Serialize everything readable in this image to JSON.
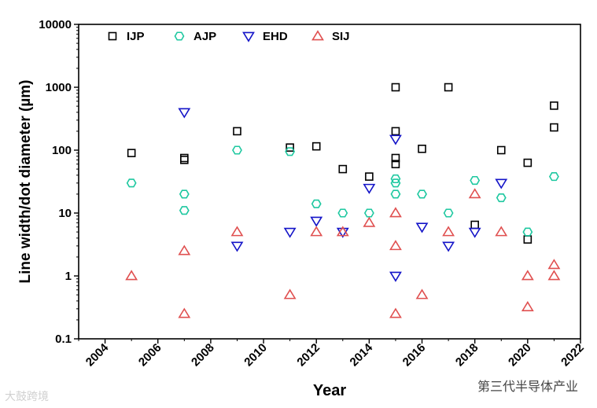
{
  "chart_data": {
    "type": "scatter",
    "title": "",
    "xlabel": "Year",
    "ylabel": "Line width/dot diameter (µm)",
    "xlim": [
      2003,
      2022
    ],
    "ylim": [
      0.1,
      10000
    ],
    "yscale": "log",
    "xticks": [
      "2004",
      "2006",
      "2008",
      "2010",
      "2012",
      "2014",
      "2016",
      "2018",
      "2020",
      "2022"
    ],
    "yticks": [
      "0.1",
      "1",
      "10",
      "100",
      "1000",
      "10000"
    ],
    "grid": false,
    "legend_position": "top",
    "series": [
      {
        "name": "IJP",
        "marker": "square",
        "color": "#000000",
        "points": [
          [
            2005,
            90
          ],
          [
            2007,
            75
          ],
          [
            2007,
            70
          ],
          [
            2009,
            200
          ],
          [
            2011,
            110
          ],
          [
            2012,
            115
          ],
          [
            2013,
            50
          ],
          [
            2014,
            38
          ],
          [
            2015,
            1000
          ],
          [
            2015,
            200
          ],
          [
            2015,
            75
          ],
          [
            2015,
            60
          ],
          [
            2016,
            105
          ],
          [
            2017,
            1000
          ],
          [
            2018,
            6.5
          ],
          [
            2019,
            100
          ],
          [
            2020,
            63
          ],
          [
            2020,
            3.8
          ],
          [
            2021,
            510
          ],
          [
            2021,
            230
          ]
        ]
      },
      {
        "name": "AJP",
        "marker": "hexagon",
        "color": "#1ec8a0",
        "points": [
          [
            2005,
            30
          ],
          [
            2007,
            20
          ],
          [
            2007,
            11
          ],
          [
            2009,
            100
          ],
          [
            2011,
            95
          ],
          [
            2012,
            14
          ],
          [
            2013,
            10
          ],
          [
            2014,
            10
          ],
          [
            2015,
            35
          ],
          [
            2015,
            30
          ],
          [
            2015,
            20
          ],
          [
            2016,
            20
          ],
          [
            2017,
            10
          ],
          [
            2018,
            33
          ],
          [
            2019,
            17.5
          ],
          [
            2020,
            5
          ],
          [
            2021,
            38
          ]
        ]
      },
      {
        "name": "EHD",
        "marker": "triangle-down",
        "color": "#1414c8",
        "points": [
          [
            2007,
            400
          ],
          [
            2009,
            3
          ],
          [
            2011,
            5
          ],
          [
            2012,
            7.5
          ],
          [
            2013,
            5
          ],
          [
            2014,
            25
          ],
          [
            2015,
            150
          ],
          [
            2015,
            1
          ],
          [
            2016,
            6
          ],
          [
            2017,
            3
          ],
          [
            2018,
            5
          ],
          [
            2019,
            30
          ]
        ]
      },
      {
        "name": "SIJ",
        "marker": "triangle-up",
        "color": "#e05050",
        "points": [
          [
            2005,
            1
          ],
          [
            2007,
            2.5
          ],
          [
            2007,
            0.25
          ],
          [
            2009,
            5
          ],
          [
            2011,
            0.5
          ],
          [
            2012,
            5
          ],
          [
            2013,
            5
          ],
          [
            2014,
            7
          ],
          [
            2015,
            10
          ],
          [
            2015,
            3
          ],
          [
            2015,
            0.25
          ],
          [
            2016,
            0.5
          ],
          [
            2017,
            5
          ],
          [
            2018,
            20
          ],
          [
            2019,
            5
          ],
          [
            2020,
            1
          ],
          [
            2020,
            0.32
          ],
          [
            2021,
            1.5
          ],
          [
            2021,
            1
          ]
        ]
      }
    ]
  },
  "watermarks": {
    "left": "大鼓跨境",
    "right": "第三代半导体产业"
  }
}
